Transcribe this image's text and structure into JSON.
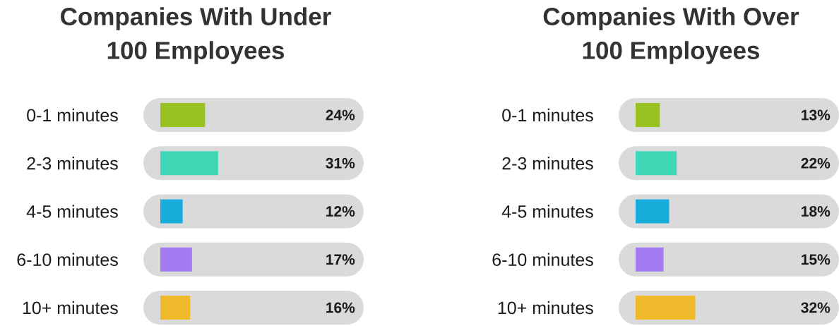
{
  "chart_data": [
    {
      "type": "bar",
      "orientation": "horizontal",
      "title": "Companies With Under 100 Employees",
      "categories": [
        "0-1 minutes",
        "2-3 minutes",
        "4-5 minutes",
        "6-10 minutes",
        "10+ minutes"
      ],
      "values": [
        24,
        31,
        12,
        17,
        16
      ],
      "colors": [
        "#97c21f",
        "#3fd8b6",
        "#19addc",
        "#a37bf3",
        "#f0b82b"
      ],
      "value_labels": [
        "24%",
        "31%",
        "12%",
        "17%",
        "16%"
      ],
      "grid": "y"
    },
    {
      "type": "bar",
      "orientation": "horizontal",
      "title": "Companies With Over 100 Employees",
      "categories": [
        "0-1 minutes",
        "2-3 minutes",
        "4-5 minutes",
        "6-10 minutes",
        "10+ minutes"
      ],
      "values": [
        13,
        22,
        18,
        15,
        32
      ],
      "colors": [
        "#97c21f",
        "#3fd8b6",
        "#19addc",
        "#a37bf3",
        "#f0b82b"
      ],
      "value_labels": [
        "13%",
        "22%",
        "18%",
        "15%",
        "32%"
      ],
      "grid": "y"
    }
  ]
}
